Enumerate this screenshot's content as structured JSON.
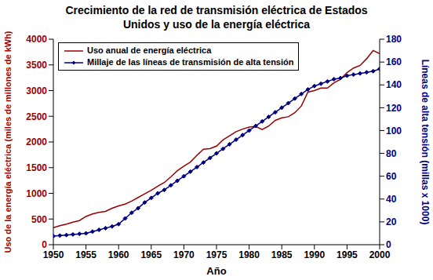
{
  "chart_data": {
    "type": "line",
    "title": "Crecimiento de la red de transmisión eléctrica de Estados Unidos y uso de la energía eléctrica",
    "x_label": "Año",
    "y_label": "Uso de la energía eléctrica (miles de millones de kWh)",
    "y2_label": "Líneas de alta tensión (millas x 1000)",
    "x": [
      1950,
      1951,
      1952,
      1953,
      1954,
      1955,
      1956,
      1957,
      1958,
      1959,
      1960,
      1961,
      1962,
      1963,
      1964,
      1965,
      1966,
      1967,
      1968,
      1969,
      1970,
      1971,
      1972,
      1973,
      1974,
      1975,
      1976,
      1977,
      1978,
      1979,
      1980,
      1981,
      1982,
      1983,
      1984,
      1985,
      1986,
      1987,
      1988,
      1989,
      1990,
      1991,
      1992,
      1993,
      1994,
      1995,
      1996,
      1997,
      1998,
      1999,
      2000
    ],
    "series": [
      {
        "name": "Uso anual de energía eléctrica",
        "color": "#990000",
        "values": [
          330,
          370,
          400,
          440,
          470,
          550,
          600,
          630,
          650,
          710,
          755,
          790,
          850,
          920,
          990,
          1060,
          1140,
          1210,
          1320,
          1440,
          1530,
          1610,
          1740,
          1860,
          1870,
          1920,
          2040,
          2120,
          2200,
          2250,
          2290,
          2300,
          2240,
          2310,
          2420,
          2470,
          2490,
          2570,
          2700,
          2970,
          3000,
          3050,
          3050,
          3150,
          3220,
          3350,
          3440,
          3490,
          3620,
          3780,
          3720
        ]
      },
      {
        "name": "Millaje de las líneas de transmisión de alta tensión",
        "color": "#000080",
        "axis": "y2",
        "marker": "diamond",
        "values": [
          7.5,
          8,
          8.5,
          9,
          9.5,
          10,
          11.5,
          13,
          14.5,
          16,
          18,
          23,
          28,
          32,
          37,
          41,
          45,
          48,
          52,
          56,
          60,
          64,
          68,
          72,
          76,
          80,
          84,
          88,
          92,
          96,
          100,
          104,
          108,
          112,
          116,
          120,
          124,
          128,
          132,
          136,
          139,
          141,
          143,
          145,
          146,
          148,
          149,
          150,
          151,
          152,
          154
        ]
      }
    ],
    "xlim": [
      1950,
      2000
    ],
    "xticks": [
      1950,
      1955,
      1960,
      1965,
      1970,
      1975,
      1980,
      1985,
      1990,
      1995,
      2000
    ],
    "ylim": [
      0,
      4000
    ],
    "yticks": [
      0,
      500,
      1000,
      1500,
      2000,
      2500,
      3000,
      3500,
      4000
    ],
    "y2lim": [
      0,
      180
    ],
    "y2ticks": [
      0,
      20,
      40,
      60,
      80,
      100,
      120,
      140,
      160,
      180
    ],
    "grid": false,
    "legend": "upper left"
  }
}
